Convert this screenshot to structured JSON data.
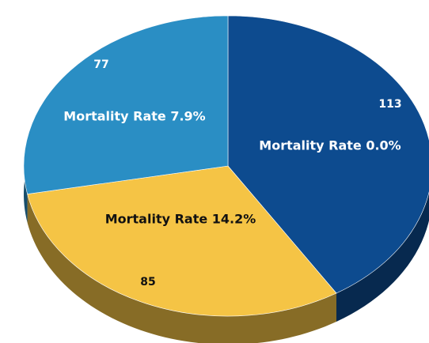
{
  "chart_data": {
    "type": "pie",
    "categories": [
      "Mortality Rate 0.0%",
      "Mortality Rate 14.2%",
      "Mortality Rate 7.9%"
    ],
    "values": [
      113,
      85,
      77
    ],
    "colors": [
      "#0d4b8f",
      "#f5c445",
      "#2a8ec4"
    ]
  }
}
